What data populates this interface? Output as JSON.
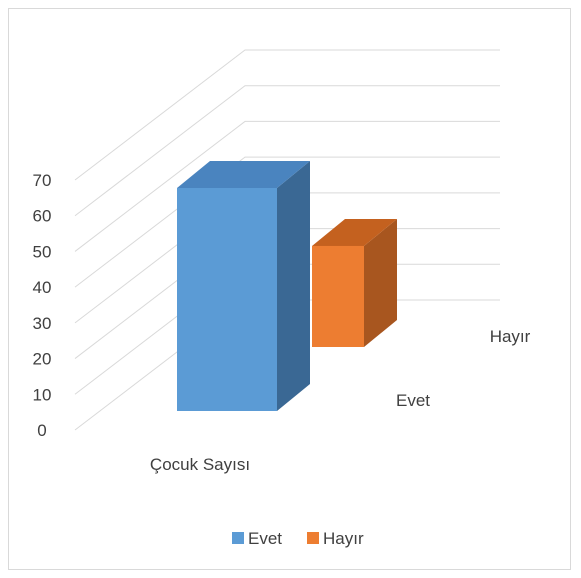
{
  "chart_data": {
    "type": "bar",
    "subtype": "3d-column",
    "categories": [
      "Çocuk Sayısı"
    ],
    "series": [
      {
        "name": "Evet",
        "values": [
          64
        ],
        "color": "#5b9bd5",
        "side_color": "#3a6894",
        "top_color": "#4a84bf"
      },
      {
        "name": "Hayır",
        "values": [
          29
        ],
        "color": "#ed7d31",
        "side_color": "#a8561f",
        "top_color": "#c4611f"
      }
    ],
    "depth_labels": [
      "Evet",
      "Hayır"
    ],
    "y_ticks": [
      "0",
      "10",
      "20",
      "30",
      "40",
      "50",
      "60",
      "70"
    ],
    "ylim": [
      0,
      70
    ],
    "grid": true,
    "legend_position": "bottom",
    "title": "",
    "xlabel": "",
    "ylabel": ""
  }
}
